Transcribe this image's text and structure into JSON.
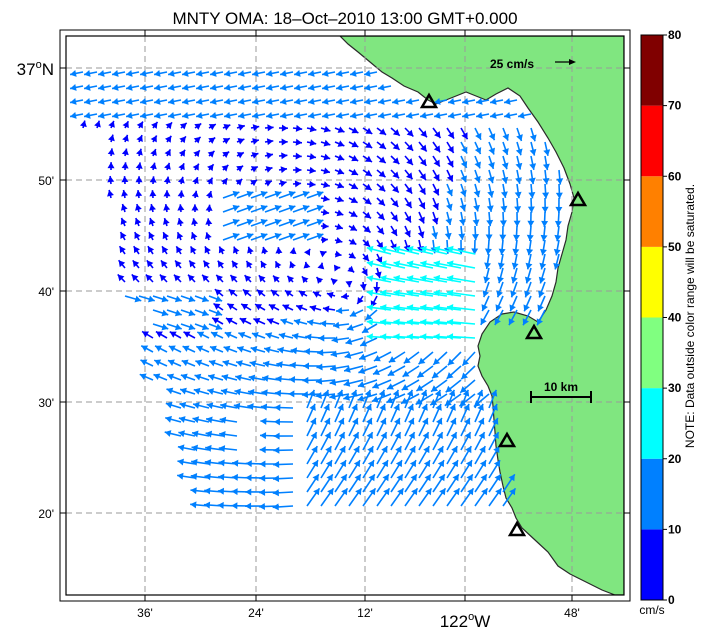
{
  "title": "MNTY OMA: 18–Oct–2010 13:00 GMT+0.000",
  "lat_labels": [
    {
      "text": "37°N",
      "main": true
    },
    {
      "text": "50'",
      "main": false
    },
    {
      "text": "40'",
      "main": false
    },
    {
      "text": "30'",
      "main": false
    },
    {
      "text": "20'",
      "main": false
    }
  ],
  "lon_labels": [
    {
      "text": "36'",
      "main": false
    },
    {
      "text": "24'",
      "main": false
    },
    {
      "text": "12'",
      "main": false
    },
    {
      "text": "122°W",
      "main": true
    },
    {
      "text": "48'",
      "main": false
    }
  ],
  "reference_vector_label": "25 cm/s",
  "scale_bar_label": "10 km",
  "colorbar": {
    "ticks": [
      "0",
      "10",
      "20",
      "30",
      "40",
      "50",
      "60",
      "70",
      "80"
    ],
    "colors": [
      "#0000ff",
      "#0080ff",
      "#00ffff",
      "#80ff80",
      "#ffff00",
      "#ff8000",
      "#ff0000",
      "#800000"
    ],
    "unit": "cm/s",
    "note": "NOTE: Data outside color range will be saturated."
  },
  "land_color": "#80e680",
  "site_marker": "triangle-icon"
}
